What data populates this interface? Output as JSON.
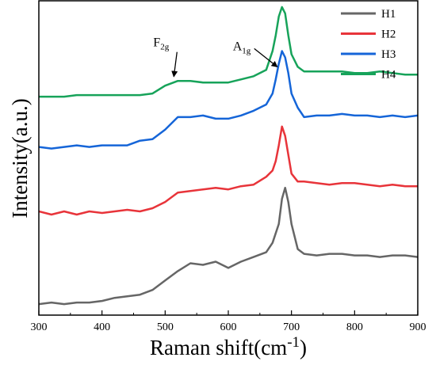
{
  "chart_data": {
    "type": "line",
    "xlabel": "Raman shift(cm",
    "xlabel_sup": "-1",
    "xlabel_close": ")",
    "ylabel": "Intensity(a.u.)",
    "xlim": [
      300,
      900
    ],
    "xticks": [
      300,
      400,
      500,
      600,
      700,
      800,
      900
    ],
    "ylim": [
      0,
      100
    ],
    "y_tick_labels_shown": false,
    "grid": false,
    "legend_position": "top-right",
    "colors": {
      "H1": "#666666",
      "H2": "#e8343a",
      "H3": "#1565d8",
      "H4": "#17a35a"
    },
    "series": [
      {
        "name": "H1",
        "x": [
          300,
          320,
          340,
          360,
          380,
          400,
          420,
          440,
          460,
          480,
          500,
          520,
          540,
          560,
          580,
          600,
          620,
          640,
          660,
          670,
          680,
          685,
          690,
          695,
          700,
          710,
          720,
          740,
          760,
          780,
          800,
          820,
          840,
          860,
          880,
          900
        ],
        "y": [
          3.5,
          4,
          3.5,
          4,
          4,
          4.5,
          5.5,
          6,
          6.5,
          8,
          11,
          14,
          16.5,
          16,
          17,
          15,
          17,
          18.5,
          20,
          23,
          29,
          37,
          40.5,
          36,
          29,
          21,
          19.5,
          19,
          19.5,
          19.5,
          19,
          19,
          18.5,
          19,
          19,
          18.5
        ]
      },
      {
        "name": "H2",
        "x": [
          300,
          320,
          340,
          360,
          380,
          400,
          420,
          440,
          460,
          480,
          500,
          520,
          540,
          560,
          580,
          600,
          620,
          640,
          660,
          670,
          675,
          680,
          685,
          690,
          695,
          700,
          710,
          720,
          740,
          760,
          780,
          800,
          820,
          840,
          860,
          880,
          900
        ],
        "y": [
          33,
          32,
          33,
          32,
          33,
          32.5,
          33,
          33.5,
          33,
          34,
          36,
          39,
          39.5,
          40,
          40.5,
          40,
          41,
          41.5,
          44,
          46,
          49,
          54,
          60,
          57,
          51,
          45,
          42.5,
          42.5,
          42,
          41.5,
          42,
          42,
          41.5,
          41,
          41.5,
          41,
          41
        ]
      },
      {
        "name": "H3",
        "x": [
          300,
          320,
          340,
          360,
          380,
          400,
          420,
          440,
          460,
          480,
          500,
          520,
          540,
          560,
          580,
          600,
          620,
          640,
          660,
          670,
          675,
          680,
          685,
          690,
          695,
          700,
          710,
          720,
          740,
          760,
          780,
          800,
          820,
          840,
          860,
          880,
          900
        ],
        "y": [
          53.5,
          53,
          53.5,
          54,
          53.5,
          54,
          54,
          54,
          55.5,
          56,
          59,
          63,
          63,
          63.5,
          62.5,
          62.5,
          63.5,
          65,
          67,
          70.5,
          75,
          80,
          84,
          82,
          77,
          70.5,
          66,
          63,
          63.5,
          63.5,
          64,
          63.5,
          63.5,
          63,
          63.5,
          63,
          63.5
        ]
      },
      {
        "name": "H4",
        "x": [
          300,
          320,
          340,
          360,
          380,
          400,
          420,
          440,
          460,
          480,
          500,
          520,
          540,
          560,
          580,
          600,
          620,
          640,
          660,
          670,
          675,
          680,
          685,
          690,
          695,
          700,
          710,
          720,
          740,
          760,
          780,
          800,
          820,
          840,
          860,
          880,
          900
        ],
        "y": [
          69.5,
          69.5,
          69.5,
          70,
          70,
          70,
          70,
          70,
          70,
          70.5,
          73,
          74.5,
          74.5,
          74,
          74,
          74,
          75,
          76,
          78,
          84,
          89,
          95,
          98,
          96,
          89,
          83,
          79,
          77.5,
          77.5,
          77.5,
          77.5,
          77,
          77,
          77.5,
          77,
          76.5,
          76.5
        ]
      }
    ],
    "annotations": [
      {
        "text": "A",
        "sub": "1g",
        "target_x": 680,
        "target_series": "H3"
      },
      {
        "text": "F",
        "sub": "2g",
        "target_x": 515,
        "target_series": "H4"
      }
    ]
  }
}
